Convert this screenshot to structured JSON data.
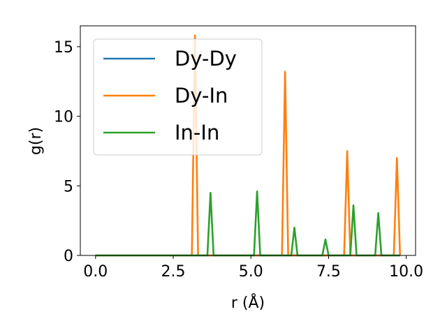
{
  "chart_data": {
    "type": "line",
    "xlabel": "r (Å)",
    "ylabel": "g(r)",
    "xlim": [
      -0.49,
      10.3
    ],
    "ylim": [
      0,
      16.5
    ],
    "xticks": [
      0.0,
      2.5,
      5.0,
      7.5,
      10.0
    ],
    "xtick_labels": [
      "0.0",
      "2.5",
      "5.0",
      "7.5",
      "10.0"
    ],
    "yticks": [
      0,
      5,
      10,
      15
    ],
    "ytick_labels": [
      "0",
      "5",
      "10",
      "15"
    ],
    "grid": false,
    "legend_position": "upper-left",
    "series": [
      {
        "name": "Dy-Dy",
        "color": "#1f77b4",
        "x": [
          0.0,
          9.8
        ],
        "y": [
          0,
          0
        ]
      },
      {
        "name": "Dy-In",
        "color": "#ff7f0e",
        "x": [
          0.0,
          3.1,
          3.2,
          3.3,
          6.0,
          6.1,
          6.2,
          8.0,
          8.1,
          8.2,
          9.6,
          9.7,
          9.8
        ],
        "y": [
          0,
          0,
          15.8,
          0,
          0,
          13.2,
          0,
          0,
          7.5,
          0,
          0,
          7.0,
          0
        ]
      },
      {
        "name": "In-In",
        "color": "#2ca02c",
        "x": [
          0.0,
          3.6,
          3.7,
          3.8,
          5.1,
          5.2,
          5.3,
          6.3,
          6.4,
          6.5,
          7.3,
          7.4,
          7.5,
          8.2,
          8.3,
          8.4,
          9.0,
          9.1,
          9.2,
          9.8
        ],
        "y": [
          0,
          0,
          4.5,
          0,
          0,
          4.6,
          0,
          0,
          2.0,
          0,
          0,
          1.15,
          0,
          0,
          3.6,
          0,
          0,
          3.05,
          0,
          0
        ]
      }
    ]
  }
}
